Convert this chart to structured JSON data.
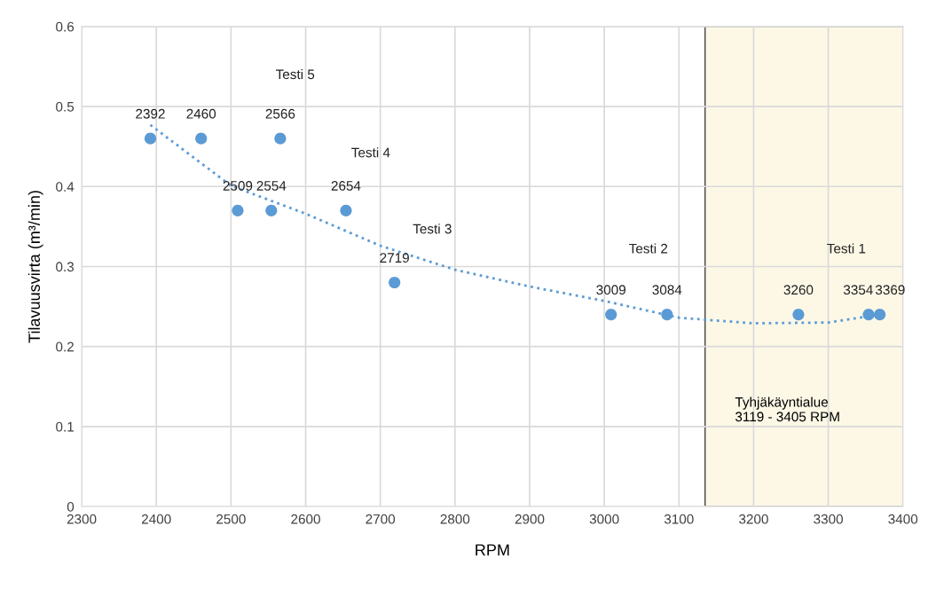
{
  "chart_data": {
    "type": "scatter",
    "xlabel": "RPM",
    "ylabel": "Tilavuusvirta (m³/min)",
    "xlim": [
      2300,
      3400
    ],
    "xticks": [
      2300,
      2400,
      2500,
      2600,
      2700,
      2800,
      2900,
      3000,
      3100,
      3200,
      3300,
      3400
    ],
    "ylim": [
      0,
      0.6
    ],
    "yticks": [
      0,
      0.1,
      0.2,
      0.3,
      0.4,
      0.5,
      0.6
    ],
    "grid": true,
    "marker": "circle",
    "series": [
      {
        "color": "#5b9bd5",
        "x": [
          2392,
          2460,
          2509,
          2554,
          2566,
          2654,
          2719,
          3009,
          3084,
          3260,
          3354,
          3369
        ],
        "values": [
          0.46,
          0.46,
          0.37,
          0.37,
          0.46,
          0.37,
          0.28,
          0.24,
          0.24,
          0.24,
          0.24,
          0.24
        ]
      },
      {
        "type": "line",
        "color": "#5b9bd5",
        "line_style": "dotted",
        "marker": "none",
        "x": [
          2392,
          2500,
          2600,
          2700,
          2800,
          2900,
          3000,
          3100,
          3200,
          3300,
          3369
        ],
        "values": [
          0.477,
          0.401,
          0.366,
          0.326,
          0.296,
          0.275,
          0.257,
          0.236,
          0.229,
          0.23,
          0.24
        ]
      }
    ],
    "bands": [
      {
        "axis": "x",
        "from": 3135,
        "to": 3405,
        "label": "Tyhjäkäyntialue\n3119 - 3405 RPM",
        "color": "#fdf8e6"
      }
    ],
    "annotations": [
      {
        "text": "2392",
        "x": 2392,
        "y": 0.46
      },
      {
        "text": "2460",
        "x": 2460,
        "y": 0.46
      },
      {
        "text": "2509",
        "x": 2509,
        "y": 0.37
      },
      {
        "text": "2554",
        "x": 2554,
        "y": 0.37
      },
      {
        "text": "2566",
        "x": 2566,
        "y": 0.46
      },
      {
        "text": "2654",
        "x": 2654,
        "y": 0.37
      },
      {
        "text": "2719",
        "x": 2719,
        "y": 0.28
      },
      {
        "text": "3009",
        "x": 3009,
        "y": 0.24
      },
      {
        "text": "3084",
        "x": 3084,
        "y": 0.24
      },
      {
        "text": "3260",
        "x": 3260,
        "y": 0.24
      },
      {
        "text": "3354",
        "x": 3354,
        "y": 0.24
      },
      {
        "text": "3369",
        "x": 3369,
        "y": 0.24
      },
      "Testi 5",
      "Testi 4",
      "Testi 3",
      "Testi 2",
      "Testi 1"
    ]
  }
}
